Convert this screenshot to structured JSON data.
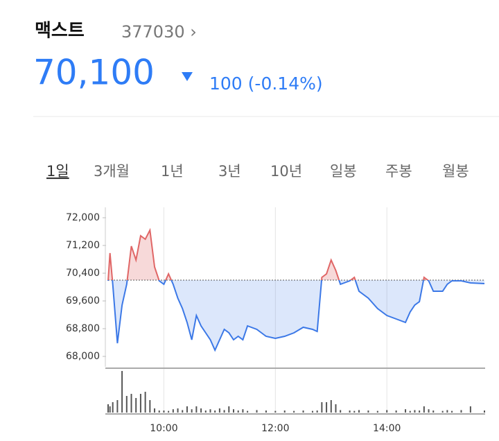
{
  "header": {
    "name": "맥스트",
    "code": "377030 ›",
    "price": "70,100",
    "change": "100 (-0.14%)"
  },
  "tabs": [
    "1일",
    "3개월",
    "1년",
    "3년",
    "10년",
    "일봉",
    "주봉",
    "월봉"
  ],
  "chart_data": {
    "type": "line",
    "x": [
      "09:00",
      "09:02",
      "09:05",
      "09:10",
      "09:15",
      "09:20",
      "09:25",
      "09:30",
      "09:35",
      "09:40",
      "09:45",
      "09:50",
      "09:55",
      "10:00",
      "10:05",
      "10:10",
      "10:15",
      "10:20",
      "10:25",
      "10:30",
      "10:35",
      "10:40",
      "10:45",
      "10:50",
      "10:55",
      "11:00",
      "11:05",
      "11:10",
      "11:15",
      "11:20",
      "11:25",
      "11:30",
      "11:40",
      "11:50",
      "12:00",
      "12:10",
      "12:20",
      "12:30",
      "12:40",
      "12:45",
      "12:50",
      "12:55",
      "13:00",
      "13:05",
      "13:10",
      "13:20",
      "13:25",
      "13:30",
      "13:40",
      "13:50",
      "14:00",
      "14:10",
      "14:20",
      "14:25",
      "14:30",
      "14:35",
      "14:40",
      "14:45",
      "14:50",
      "15:00",
      "15:05",
      "15:10",
      "15:20",
      "15:30",
      "15:45"
    ],
    "values": [
      70180,
      70980,
      70080,
      68380,
      69480,
      70080,
      71180,
      70780,
      71480,
      71380,
      71640,
      70580,
      70180,
      70080,
      70380,
      70080,
      69680,
      69380,
      68980,
      68480,
      69180,
      68880,
      68680,
      68480,
      68180,
      68480,
      68780,
      68680,
      68480,
      68580,
      68480,
      68880,
      68780,
      68580,
      68520,
      68580,
      68680,
      68840,
      68780,
      68720,
      70280,
      70380,
      70780,
      70480,
      70080,
      70180,
      70280,
      69880,
      69680,
      69380,
      69180,
      69080,
      68980,
      69280,
      69480,
      69580,
      70280,
      70180,
      69880,
      69880,
      70080,
      70180,
      70180,
      70120,
      70100
    ],
    "volume": [
      20,
      15,
      25,
      30,
      100,
      40,
      45,
      35,
      45,
      50,
      30,
      10,
      5,
      5,
      4,
      8,
      10,
      6,
      15,
      8,
      15,
      10,
      5,
      8,
      5,
      10,
      6,
      15,
      8,
      5,
      8,
      4,
      6,
      5,
      4,
      5,
      4,
      5,
      4,
      5,
      25,
      25,
      30,
      20,
      6,
      5,
      4,
      6,
      5,
      4,
      6,
      5,
      8,
      4,
      6,
      5,
      15,
      8,
      5,
      4,
      6,
      4,
      6,
      15,
      5
    ],
    "base": 70200,
    "up_color": "#e06666",
    "down_color": "#3b78e7",
    "xlim": [
      "09:00",
      "15:45"
    ],
    "xticks": [
      "10:00",
      "12:00",
      "14:00"
    ],
    "ylim": [
      67700,
      72300
    ],
    "yticks": [
      {
        "value": 72000,
        "label": "72,000"
      },
      {
        "value": 71200,
        "label": "71,200"
      },
      {
        "value": 70400,
        "label": "70,400"
      },
      {
        "value": 69600,
        "label": "69,600"
      },
      {
        "value": 68800,
        "label": "68,800"
      },
      {
        "value": 68000,
        "label": "68,000"
      }
    ],
    "grid": true
  }
}
